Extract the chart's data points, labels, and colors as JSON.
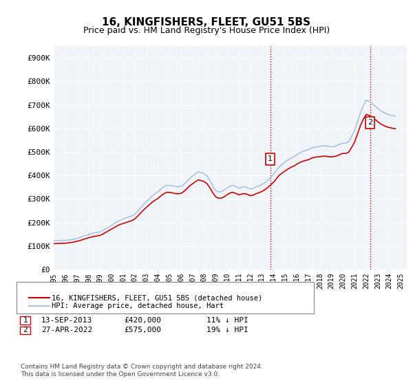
{
  "title": "16, KINGFISHERS, FLEET, GU51 5BS",
  "subtitle": "Price paid vs. HM Land Registry's House Price Index (HPI)",
  "ylabel_ticks": [
    "£0",
    "£100K",
    "£200K",
    "£300K",
    "£400K",
    "£500K",
    "£600K",
    "£700K",
    "£800K",
    "£900K"
  ],
  "ytick_values": [
    0,
    100000,
    200000,
    300000,
    400000,
    500000,
    600000,
    700000,
    800000,
    900000
  ],
  "ylim": [
    0,
    950000
  ],
  "xlim_start": 1995.0,
  "xlim_end": 2025.5,
  "xtick_years": [
    1995,
    1996,
    1997,
    1998,
    1999,
    2000,
    2001,
    2002,
    2003,
    2004,
    2005,
    2006,
    2007,
    2008,
    2009,
    2010,
    2011,
    2012,
    2013,
    2014,
    2015,
    2016,
    2017,
    2018,
    2019,
    2020,
    2021,
    2022,
    2023,
    2024,
    2025
  ],
  "hpi_color": "#aac4e0",
  "price_color": "#cc0000",
  "vline_color": "#cc0000",
  "vline_style": ":",
  "background_plot": "#f0f4f8",
  "sale1_x": 2013.708,
  "sale1_y": 420000,
  "sale1_label": "1",
  "sale2_x": 2022.32,
  "sale2_y": 575000,
  "sale2_label": "2",
  "legend_line1": "16, KINGFISHERS, FLEET, GU51 5BS (detached house)",
  "legend_line2": "HPI: Average price, detached house, Hart",
  "annotation1_date": "13-SEP-2013",
  "annotation1_price": "£420,000",
  "annotation1_hpi": "11% ↓ HPI",
  "annotation2_date": "27-APR-2022",
  "annotation2_price": "£575,000",
  "annotation2_hpi": "19% ↓ HPI",
  "footer": "Contains HM Land Registry data © Crown copyright and database right 2024.\nThis data is licensed under the Open Government Licence v3.0.",
  "hpi_data": {
    "years": [
      1995.0,
      1995.25,
      1995.5,
      1995.75,
      1996.0,
      1996.25,
      1996.5,
      1996.75,
      1997.0,
      1997.25,
      1997.5,
      1997.75,
      1998.0,
      1998.25,
      1998.5,
      1998.75,
      1999.0,
      1999.25,
      1999.5,
      1999.75,
      2000.0,
      2000.25,
      2000.5,
      2000.75,
      2001.0,
      2001.25,
      2001.5,
      2001.75,
      2002.0,
      2002.25,
      2002.5,
      2002.75,
      2003.0,
      2003.25,
      2003.5,
      2003.75,
      2004.0,
      2004.25,
      2004.5,
      2004.75,
      2005.0,
      2005.25,
      2005.5,
      2005.75,
      2006.0,
      2006.25,
      2006.5,
      2006.75,
      2007.0,
      2007.25,
      2007.5,
      2007.75,
      2008.0,
      2008.25,
      2008.5,
      2008.75,
      2009.0,
      2009.25,
      2009.5,
      2009.75,
      2010.0,
      2010.25,
      2010.5,
      2010.75,
      2011.0,
      2011.25,
      2011.5,
      2011.75,
      2012.0,
      2012.25,
      2012.5,
      2012.75,
      2013.0,
      2013.25,
      2013.5,
      2013.75,
      2014.0,
      2014.25,
      2014.5,
      2014.75,
      2015.0,
      2015.25,
      2015.5,
      2015.75,
      2016.0,
      2016.25,
      2016.5,
      2016.75,
      2017.0,
      2017.25,
      2017.5,
      2017.75,
      2018.0,
      2018.25,
      2018.5,
      2018.75,
      2019.0,
      2019.25,
      2019.5,
      2019.75,
      2020.0,
      2020.25,
      2020.5,
      2020.75,
      2021.0,
      2021.25,
      2021.5,
      2021.75,
      2022.0,
      2022.25,
      2022.5,
      2022.75,
      2023.0,
      2023.25,
      2023.5,
      2023.75,
      2024.0,
      2024.25,
      2024.5
    ],
    "values": [
      122000,
      122500,
      123000,
      123500,
      124000,
      125000,
      127000,
      129000,
      132000,
      136000,
      140000,
      144000,
      148000,
      152000,
      156000,
      158000,
      160000,
      166000,
      173000,
      180000,
      188000,
      196000,
      204000,
      210000,
      215000,
      220000,
      224000,
      228000,
      235000,
      248000,
      262000,
      276000,
      288000,
      300000,
      312000,
      322000,
      330000,
      342000,
      352000,
      358000,
      358000,
      356000,
      353000,
      352000,
      354000,
      362000,
      375000,
      388000,
      398000,
      408000,
      415000,
      412000,
      408000,
      398000,
      378000,
      355000,
      336000,
      330000,
      332000,
      338000,
      348000,
      355000,
      358000,
      352000,
      346000,
      350000,
      352000,
      348000,
      342000,
      346000,
      352000,
      356000,
      362000,
      370000,
      380000,
      392000,
      406000,
      422000,
      438000,
      448000,
      458000,
      466000,
      474000,
      480000,
      488000,
      496000,
      502000,
      506000,
      510000,
      516000,
      520000,
      522000,
      524000,
      526000,
      526000,
      524000,
      522000,
      524000,
      528000,
      534000,
      538000,
      538000,
      545000,
      568000,
      592000,
      630000,
      668000,
      698000,
      720000,
      715000,
      706000,
      696000,
      685000,
      675000,
      668000,
      662000,
      658000,
      655000,
      652000
    ]
  },
  "price_data": {
    "years": [
      1995.0,
      1995.25,
      1995.5,
      1995.75,
      1996.0,
      1996.25,
      1996.5,
      1996.75,
      1997.0,
      1997.25,
      1997.5,
      1997.75,
      1998.0,
      1998.25,
      1998.5,
      1998.75,
      1999.0,
      1999.25,
      1999.5,
      1999.75,
      2000.0,
      2000.25,
      2000.5,
      2000.75,
      2001.0,
      2001.25,
      2001.5,
      2001.75,
      2002.0,
      2002.25,
      2002.5,
      2002.75,
      2003.0,
      2003.25,
      2003.5,
      2003.75,
      2004.0,
      2004.25,
      2004.5,
      2004.75,
      2005.0,
      2005.25,
      2005.5,
      2005.75,
      2006.0,
      2006.25,
      2006.5,
      2006.75,
      2007.0,
      2007.25,
      2007.5,
      2007.75,
      2008.0,
      2008.25,
      2008.5,
      2008.75,
      2009.0,
      2009.25,
      2009.5,
      2009.75,
      2010.0,
      2010.25,
      2010.5,
      2010.75,
      2011.0,
      2011.25,
      2011.5,
      2011.75,
      2012.0,
      2012.25,
      2012.5,
      2012.75,
      2013.0,
      2013.25,
      2013.5,
      2013.75,
      2014.0,
      2014.25,
      2014.5,
      2014.75,
      2015.0,
      2015.25,
      2015.5,
      2015.75,
      2016.0,
      2016.25,
      2016.5,
      2016.75,
      2017.0,
      2017.25,
      2017.5,
      2017.75,
      2018.0,
      2018.25,
      2018.5,
      2018.75,
      2019.0,
      2019.25,
      2019.5,
      2019.75,
      2020.0,
      2020.25,
      2020.5,
      2020.75,
      2021.0,
      2021.25,
      2021.5,
      2021.75,
      2022.0,
      2022.25,
      2022.5,
      2022.75,
      2023.0,
      2023.25,
      2023.5,
      2023.75,
      2024.0,
      2024.25,
      2024.5
    ],
    "values": [
      110000,
      110500,
      111000,
      111500,
      112000,
      113000,
      115000,
      117000,
      120000,
      123000,
      127000,
      131000,
      135000,
      138000,
      141000,
      143000,
      145000,
      151000,
      158000,
      165000,
      172000,
      179000,
      186000,
      192000,
      196000,
      200000,
      204000,
      208000,
      215000,
      227000,
      240000,
      253000,
      264000,
      275000,
      286000,
      295000,
      302000,
      313000,
      322000,
      328000,
      328000,
      326000,
      323000,
      322000,
      324000,
      332000,
      344000,
      356000,
      365000,
      374000,
      381000,
      378000,
      374000,
      365000,
      347000,
      326000,
      309000,
      303000,
      304000,
      310000,
      319000,
      326000,
      328000,
      323000,
      318000,
      321000,
      323000,
      319000,
      314000,
      317000,
      323000,
      327000,
      332000,
      340000,
      349000,
      360000,
      372000,
      387000,
      402000,
      411000,
      420000,
      428000,
      435000,
      440000,
      448000,
      455000,
      460000,
      464000,
      467000,
      473000,
      477000,
      479000,
      480000,
      482000,
      482000,
      480000,
      479000,
      481000,
      484000,
      490000,
      494000,
      494000,
      500000,
      521000,
      543000,
      578000,
      613000,
      640000,
      660000,
      655000,
      648000,
      638000,
      629000,
      619000,
      613000,
      607000,
      604000,
      601000,
      599000
    ]
  }
}
